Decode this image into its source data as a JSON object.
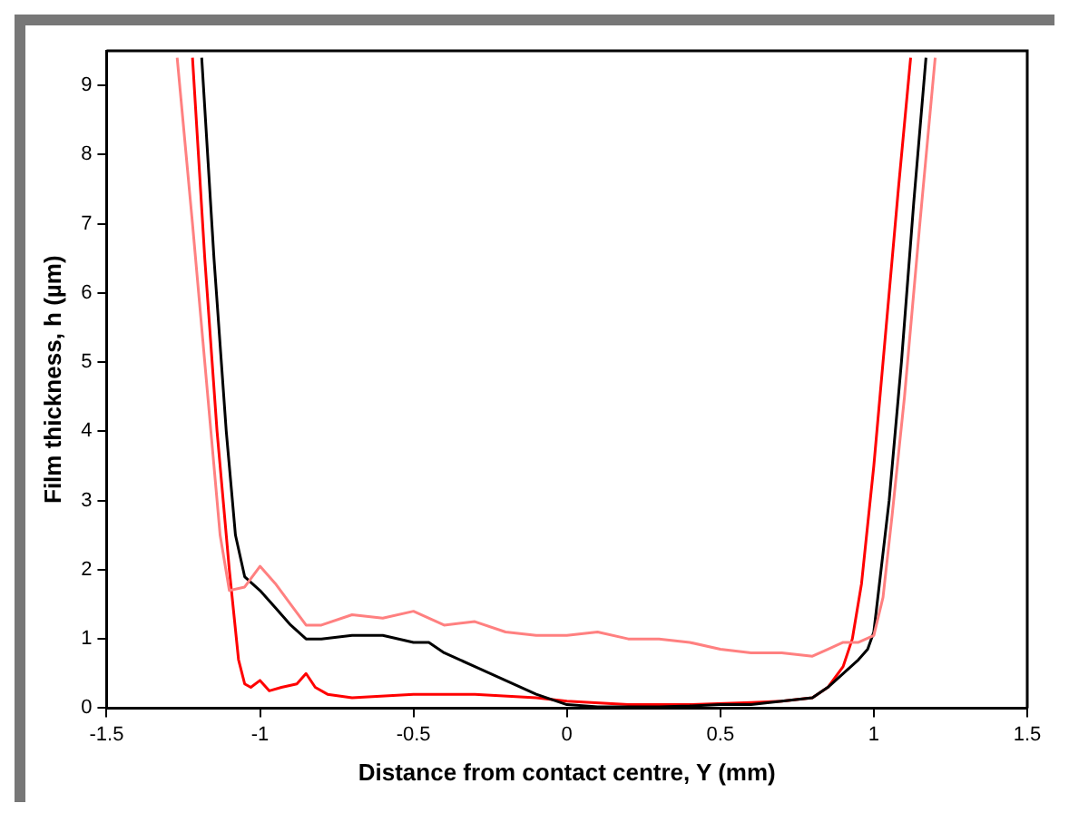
{
  "chart_data": {
    "type": "line",
    "xlabel": "Distance from contact centre, Y (mm)",
    "ylabel": "Film thickness, h (µm)",
    "xlim": [
      -1.5,
      1.5
    ],
    "xticks": [
      -1.5,
      -1,
      -0.5,
      0,
      0.5,
      1,
      1.5
    ],
    "ylim": [
      0,
      9.5
    ],
    "yticks": [
      0,
      1,
      2,
      3,
      4,
      5,
      6,
      7,
      8,
      9
    ],
    "grid": false,
    "legend": false,
    "marker": "none",
    "line_style": "solid",
    "series": [
      {
        "color": "#ff8080",
        "x": [
          -1.27,
          -1.22,
          -1.17,
          -1.13,
          -1.1,
          -1.05,
          -1.0,
          -0.95,
          -0.9,
          -0.85,
          -0.8,
          -0.7,
          -0.6,
          -0.5,
          -0.4,
          -0.3,
          -0.2,
          -0.1,
          0,
          0.1,
          0.2,
          0.3,
          0.4,
          0.5,
          0.6,
          0.7,
          0.8,
          0.85,
          0.9,
          0.95,
          1.0,
          1.03,
          1.06,
          1.1,
          1.15,
          1.2
        ],
        "values": [
          9.4,
          7,
          4.5,
          2.5,
          1.7,
          1.75,
          2.05,
          1.8,
          1.5,
          1.2,
          1.2,
          1.35,
          1.3,
          1.4,
          1.2,
          1.25,
          1.1,
          1.05,
          1.05,
          1.1,
          1.0,
          1.0,
          0.95,
          0.85,
          0.8,
          0.8,
          0.75,
          0.85,
          0.95,
          0.95,
          1.05,
          1.6,
          2.8,
          4.5,
          7,
          9.4
        ]
      },
      {
        "color": "#000000",
        "x": [
          -1.19,
          -1.15,
          -1.11,
          -1.08,
          -1.05,
          -1.0,
          -0.95,
          -0.9,
          -0.85,
          -0.8,
          -0.7,
          -0.6,
          -0.5,
          -0.45,
          -0.4,
          -0.3,
          -0.2,
          -0.1,
          0,
          0.1,
          0.2,
          0.3,
          0.4,
          0.5,
          0.6,
          0.7,
          0.8,
          0.85,
          0.9,
          0.95,
          0.98,
          1.0,
          1.05,
          1.09,
          1.13,
          1.17
        ],
        "values": [
          9.4,
          6.5,
          4,
          2.5,
          1.9,
          1.7,
          1.45,
          1.2,
          1.0,
          1.0,
          1.05,
          1.05,
          0.95,
          0.95,
          0.8,
          0.6,
          0.4,
          0.2,
          0.05,
          0.02,
          0.02,
          0.02,
          0.03,
          0.05,
          0.05,
          0.1,
          0.15,
          0.3,
          0.5,
          0.7,
          0.85,
          1.1,
          3,
          5,
          7.3,
          9.4
        ]
      },
      {
        "color": "#ff0000",
        "x": [
          -1.22,
          -1.18,
          -1.14,
          -1.1,
          -1.07,
          -1.05,
          -1.03,
          -1.0,
          -0.97,
          -0.93,
          -0.88,
          -0.85,
          -0.82,
          -0.78,
          -0.7,
          -0.5,
          -0.3,
          -0.1,
          0,
          0.2,
          0.4,
          0.6,
          0.7,
          0.8,
          0.85,
          0.9,
          0.93,
          0.96,
          1.0,
          1.04,
          1.08,
          1.12
        ],
        "values": [
          9.4,
          6.5,
          4,
          2,
          0.7,
          0.35,
          0.3,
          0.4,
          0.25,
          0.3,
          0.35,
          0.5,
          0.3,
          0.2,
          0.15,
          0.2,
          0.2,
          0.15,
          0.1,
          0.05,
          0.05,
          0.08,
          0.1,
          0.15,
          0.3,
          0.6,
          1.0,
          1.8,
          3.5,
          5.5,
          7.5,
          9.4
        ]
      }
    ]
  }
}
